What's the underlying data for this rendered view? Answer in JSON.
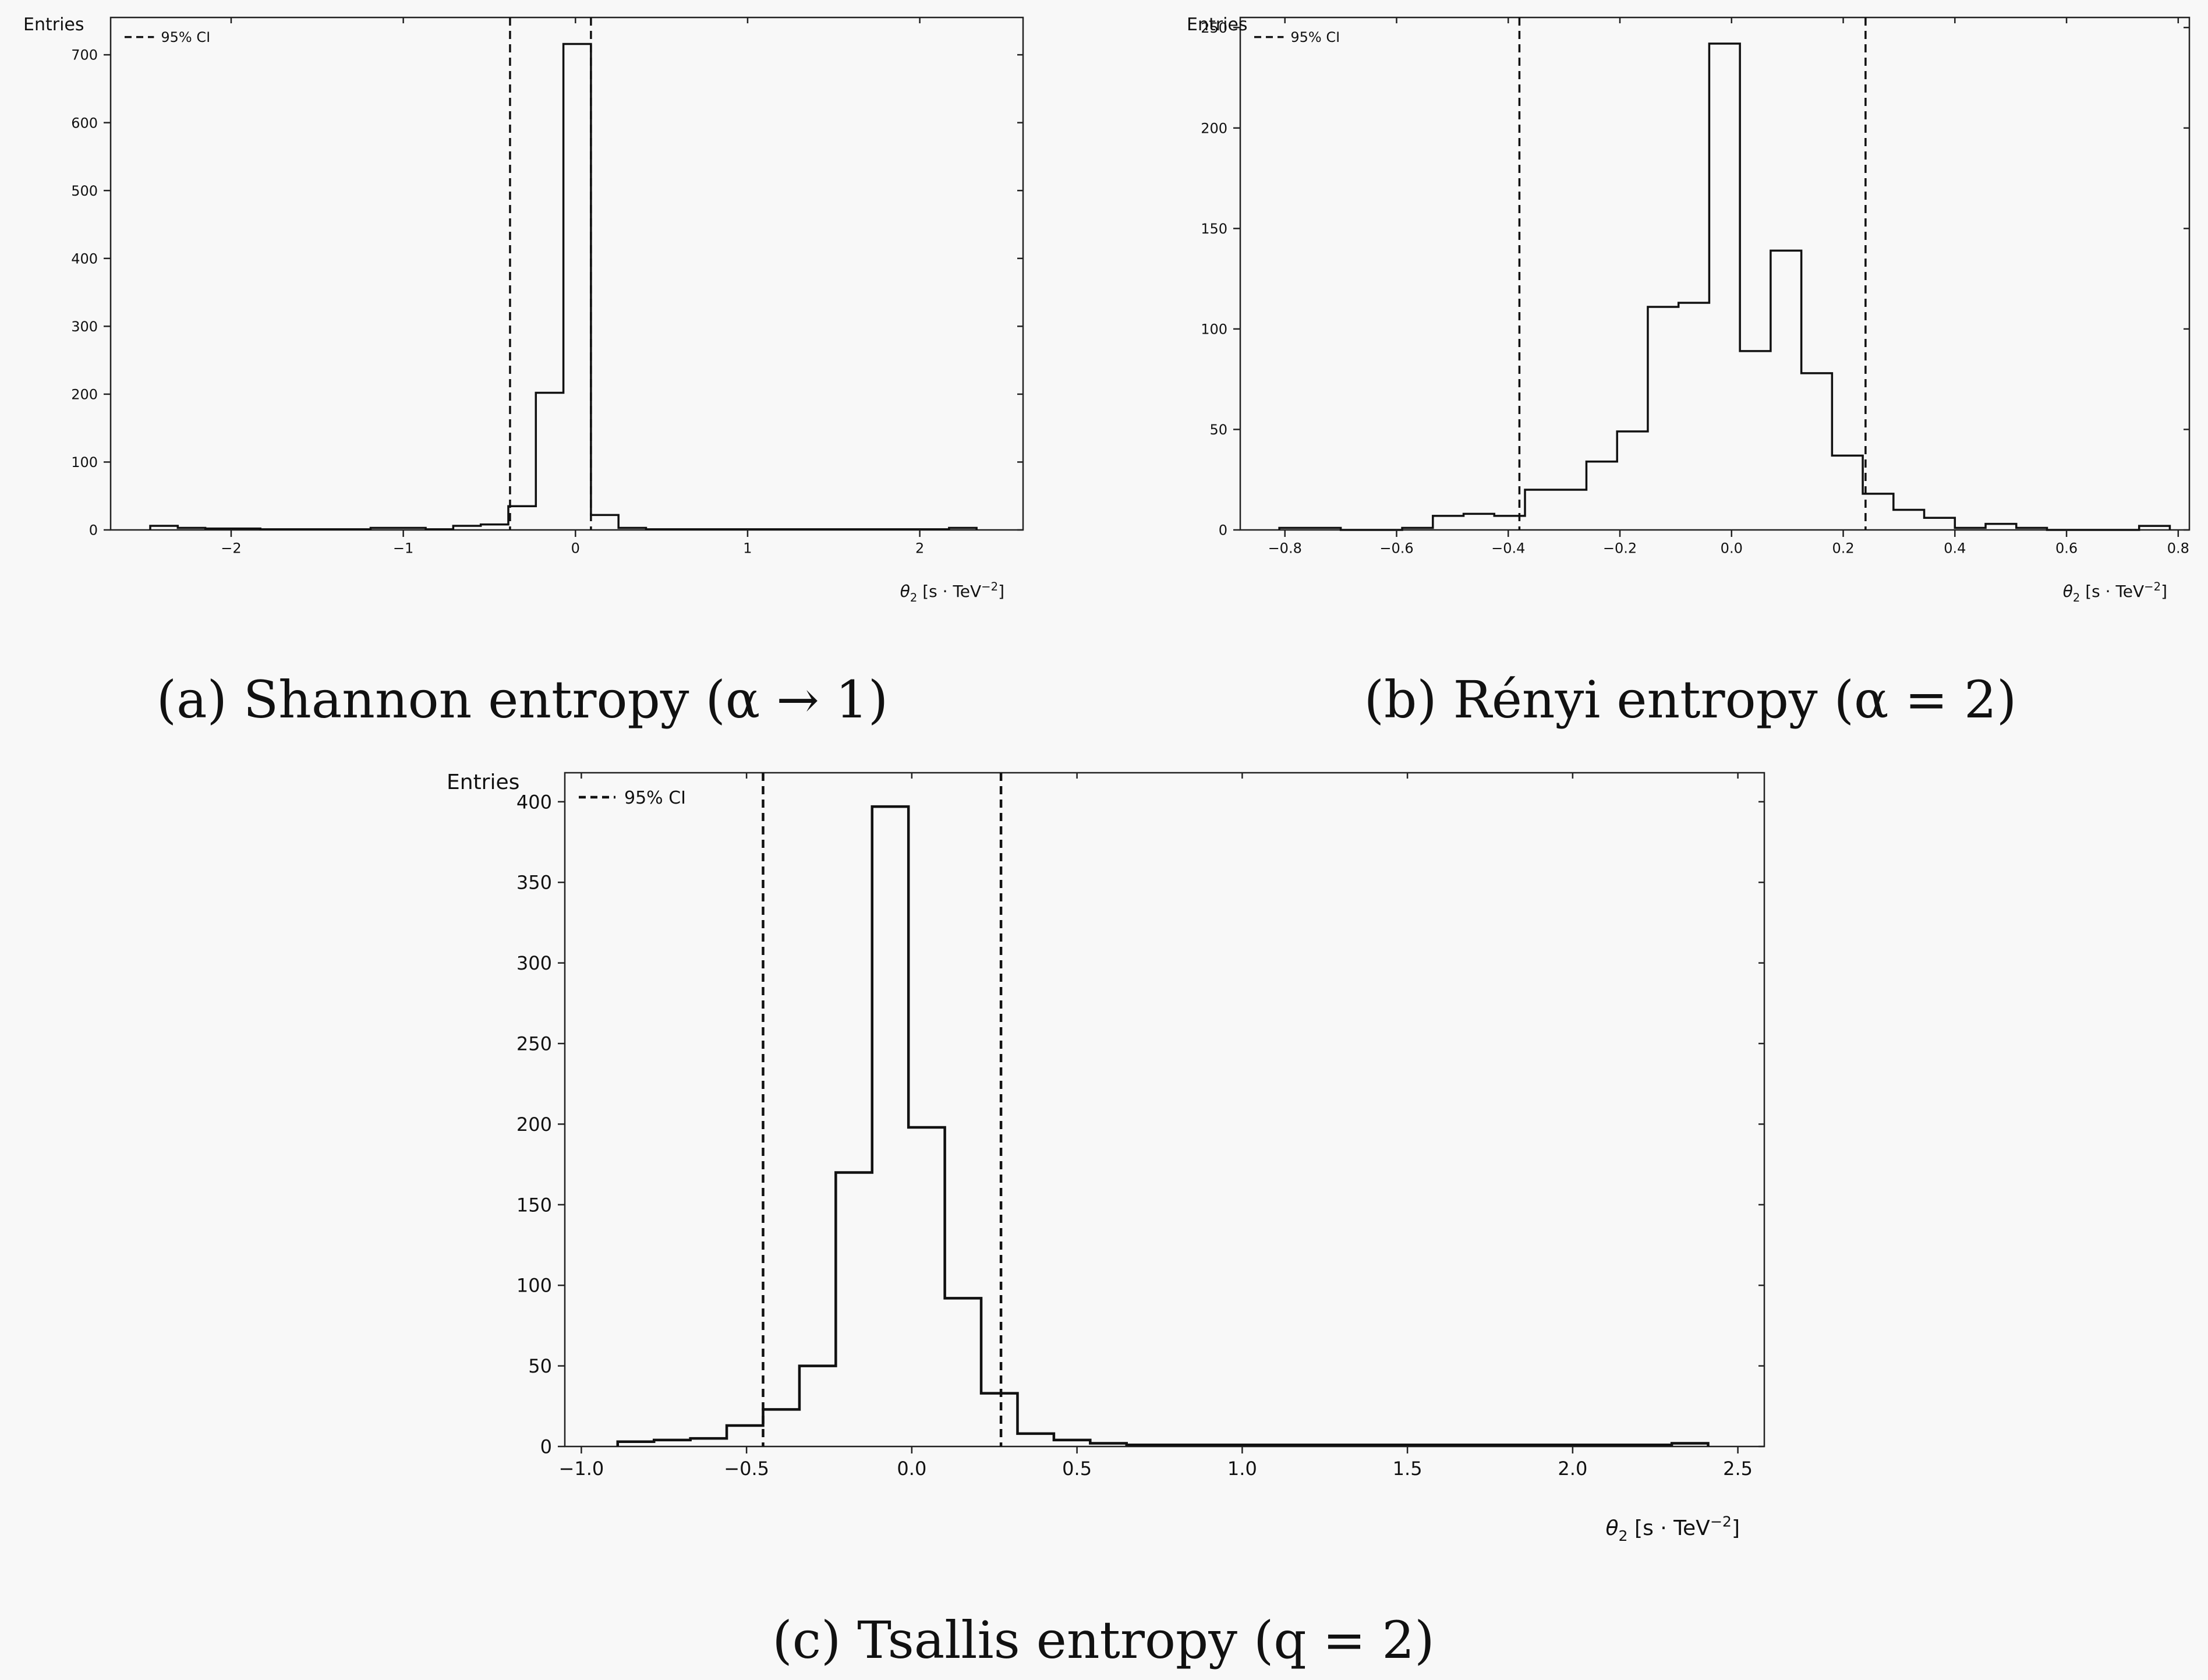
{
  "chart_data": [
    {
      "type": "bar",
      "caption": "(a) Shannon entropy (α → 1)",
      "ylabel": "Entries",
      "xlabel": "θ2 [s · TeV−2]",
      "xlabel_parts": {
        "symbol": "θ",
        "sub": "2",
        "unit_left": " [s · TeV",
        "sup": "−2",
        "unit_right": "]"
      },
      "legend": {
        "label": "95% CI",
        "placement": "top-left",
        "style": "dashed"
      },
      "xlim": [
        -2.7,
        2.6
      ],
      "ylim": [
        0,
        755
      ],
      "xticks": [
        -2,
        -1,
        0,
        1,
        2
      ],
      "xtick_labels": [
        "−2",
        "−1",
        "0",
        "1",
        "2"
      ],
      "yticks": [
        0,
        100,
        200,
        300,
        400,
        500,
        600,
        700
      ],
      "ytick_labels": [
        "0",
        "100",
        "200",
        "300",
        "400",
        "500",
        "600",
        "700"
      ],
      "ci": [
        -0.38,
        0.09
      ],
      "bin_edges": [
        -2.47,
        -2.31,
        -2.15,
        -1.99,
        -1.83,
        -1.67,
        -1.51,
        -1.35,
        -1.19,
        -1.03,
        -0.87,
        -0.71,
        -0.55,
        -0.39,
        -0.23,
        -0.07,
        0.09,
        0.25,
        0.41,
        0.57,
        0.73,
        0.89,
        1.05,
        1.21,
        1.37,
        1.53,
        1.69,
        1.85,
        2.01,
        2.17,
        2.33
      ],
      "values": [
        6,
        3,
        2,
        2,
        1,
        1,
        1,
        1,
        3,
        3,
        1,
        6,
        8,
        35,
        202,
        716,
        22,
        3,
        1,
        1,
        1,
        1,
        1,
        1,
        1,
        1,
        1,
        1,
        1,
        3
      ]
    },
    {
      "type": "bar",
      "caption": "(b) Rényi entropy (α = 2)",
      "ylabel": "Entries",
      "xlabel": "θ2 [s · TeV−2]",
      "xlabel_parts": {
        "symbol": "θ",
        "sub": "2",
        "unit_left": " [s · TeV",
        "sup": "−2",
        "unit_right": "]"
      },
      "legend": {
        "label": "95% CI",
        "placement": "top-left",
        "style": "dashed"
      },
      "xlim": [
        -0.88,
        0.82
      ],
      "ylim": [
        0,
        255
      ],
      "xticks": [
        -0.8,
        -0.6,
        -0.4,
        -0.2,
        0.0,
        0.2,
        0.4,
        0.6,
        0.8
      ],
      "xtick_labels": [
        "−0.8",
        "−0.6",
        "−0.4",
        "−0.2",
        "0.0",
        "0.2",
        "0.4",
        "0.6",
        "0.8"
      ],
      "yticks": [
        0,
        50,
        100,
        150,
        200,
        250
      ],
      "ytick_labels": [
        "0",
        "50",
        "100",
        "150",
        "200",
        "250"
      ],
      "ci": [
        -0.38,
        0.24
      ],
      "bin_edges": [
        -0.81,
        -0.755,
        -0.7,
        -0.645,
        -0.59,
        -0.535,
        -0.48,
        -0.425,
        -0.37,
        -0.315,
        -0.26,
        -0.205,
        -0.15,
        -0.095,
        -0.04,
        0.015,
        0.07,
        0.125,
        0.18,
        0.235,
        0.29,
        0.345,
        0.4,
        0.455,
        0.51,
        0.565,
        0.62,
        0.675,
        0.73,
        0.785
      ],
      "values": [
        1,
        1,
        0,
        0,
        1,
        7,
        8,
        7,
        20,
        20,
        34,
        49,
        111,
        113,
        242,
        89,
        139,
        78,
        37,
        18,
        10,
        6,
        1,
        3,
        1,
        0,
        0,
        0,
        2
      ]
    },
    {
      "type": "bar",
      "caption": "(c) Tsallis entropy (q = 2)",
      "ylabel": "Entries",
      "xlabel": "θ2 [s · TeV−2]",
      "xlabel_parts": {
        "symbol": "θ",
        "sub": "2",
        "unit_left": " [s · TeV",
        "sup": "−2",
        "unit_right": "]"
      },
      "legend": {
        "label": "95% CI",
        "placement": "top-left",
        "style": "dashed"
      },
      "xlim": [
        -1.05,
        2.58
      ],
      "ylim": [
        0,
        418
      ],
      "xticks": [
        -1.0,
        -0.5,
        0.0,
        0.5,
        1.0,
        1.5,
        2.0,
        2.5
      ],
      "xtick_labels": [
        "−1.0",
        "−0.5",
        "0.0",
        "0.5",
        "1.0",
        "1.5",
        "2.0",
        "2.5"
      ],
      "yticks": [
        0,
        50,
        100,
        150,
        200,
        250,
        300,
        350,
        400
      ],
      "ytick_labels": [
        "0",
        "50",
        "100",
        "150",
        "200",
        "250",
        "300",
        "350",
        "400"
      ],
      "ci": [
        -0.45,
        0.27
      ],
      "bin_edges": [
        -0.89,
        -0.78,
        -0.67,
        -0.56,
        -0.45,
        -0.34,
        -0.23,
        -0.12,
        -0.01,
        0.1,
        0.21,
        0.32,
        0.43,
        0.54,
        0.65,
        0.76,
        0.87,
        0.98,
        1.09,
        1.2,
        1.31,
        1.42,
        1.53,
        1.64,
        1.75,
        1.86,
        1.97,
        2.08,
        2.19,
        2.3,
        2.41
      ],
      "values": [
        3,
        4,
        5,
        13,
        23,
        50,
        170,
        397,
        198,
        92,
        33,
        8,
        4,
        2,
        1,
        1,
        1,
        1,
        1,
        1,
        1,
        1,
        1,
        1,
        1,
        1,
        1,
        1,
        1,
        2
      ]
    }
  ]
}
